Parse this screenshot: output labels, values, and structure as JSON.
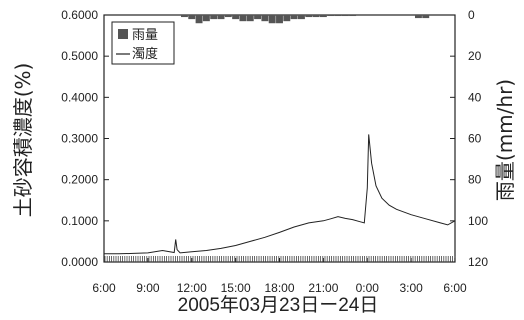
{
  "chart_data": {
    "type": "line",
    "title": "",
    "xlabel": "2005年03月23日ー24日",
    "ylabel": "土砂容積濃度(%)",
    "y2label": "雨量(mm/hr)",
    "x_ticks": [
      "6:00",
      "9:00",
      "12:00",
      "15:00",
      "18:00",
      "21:00",
      "0:00",
      "3:00",
      "6:00"
    ],
    "y_ticks": [
      "0.0000",
      "0.1000",
      "0.2000",
      "0.3000",
      "0.4000",
      "0.5000",
      "0.6000"
    ],
    "y2_ticks": [
      "0",
      "20",
      "40",
      "60",
      "80",
      "100",
      "120"
    ],
    "xlim_hours": [
      6,
      30
    ],
    "ylim": [
      0,
      0.6
    ],
    "y2lim": [
      0,
      120
    ],
    "y2_inverted": true,
    "grid": false,
    "legend_position": "top-left",
    "series": [
      {
        "name": "濁度",
        "kind": "line",
        "axis": "left",
        "color": "#222222",
        "x": [
          6.0,
          7.0,
          8.0,
          9.0,
          10.0,
          10.8,
          10.9,
          11.0,
          11.2,
          12.0,
          13.0,
          14.0,
          15.0,
          16.0,
          17.0,
          18.0,
          19.0,
          20.0,
          21.0,
          21.5,
          22.0,
          22.5,
          23.0,
          23.5,
          23.8,
          24.0,
          24.1,
          24.3,
          24.6,
          25.0,
          25.5,
          26.0,
          27.0,
          28.0,
          29.0,
          29.5,
          30.0
        ],
        "y": [
          0.02,
          0.02,
          0.021,
          0.022,
          0.028,
          0.023,
          0.055,
          0.03,
          0.022,
          0.025,
          0.028,
          0.033,
          0.04,
          0.05,
          0.06,
          0.072,
          0.085,
          0.095,
          0.1,
          0.105,
          0.11,
          0.106,
          0.103,
          0.098,
          0.095,
          0.18,
          0.31,
          0.24,
          0.185,
          0.155,
          0.138,
          0.128,
          0.115,
          0.105,
          0.095,
          0.09,
          0.1
        ]
      },
      {
        "name": "雨量",
        "kind": "bar",
        "axis": "right",
        "color": "#555555",
        "x": [
          11.5,
          12.0,
          12.5,
          13.0,
          13.5,
          14.0,
          14.5,
          15.0,
          15.5,
          16.0,
          16.5,
          17.0,
          17.5,
          18.0,
          18.5,
          19.0,
          19.5,
          20.0,
          20.5,
          21.0,
          21.5,
          22.0,
          22.5,
          23.0,
          27.5,
          28.0
        ],
        "y": [
          1,
          2,
          4,
          3,
          2,
          2,
          1,
          2,
          3,
          3,
          2,
          3,
          4,
          4,
          3,
          2,
          2,
          1,
          1,
          1,
          0.5,
          0.5,
          0.5,
          0.5,
          1.5,
          1.5
        ]
      }
    ]
  }
}
